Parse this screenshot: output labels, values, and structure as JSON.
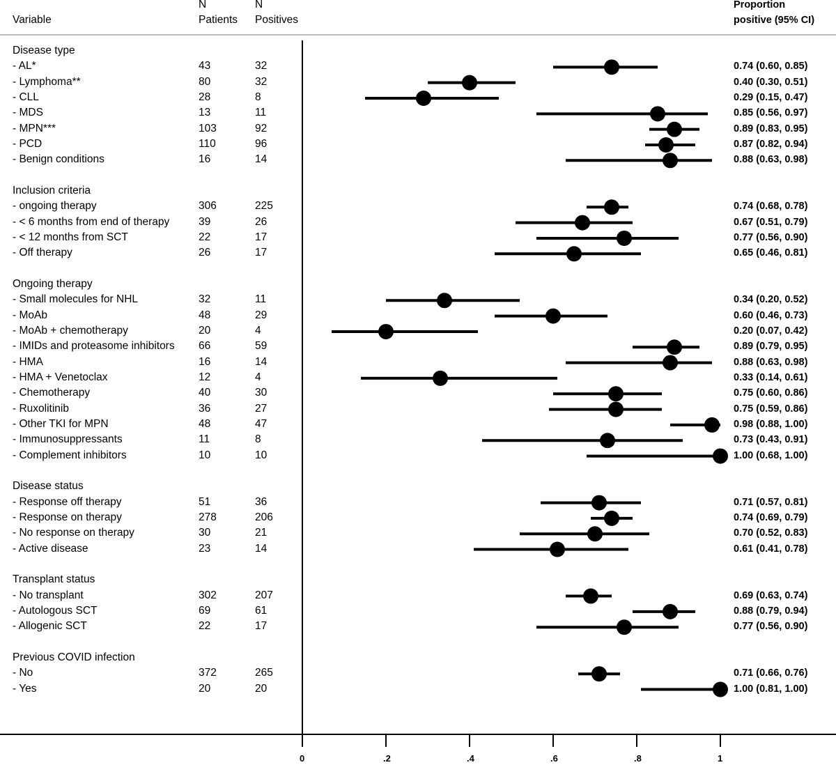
{
  "chart_data": {
    "type": "forest",
    "headers": {
      "variable": "Variable",
      "n_patients": [
        "N",
        "Patients"
      ],
      "n_positives": [
        "N",
        "Positives"
      ],
      "estimate": [
        "Proportion",
        "positive (95% CI)"
      ]
    },
    "xlim": [
      0,
      1
    ],
    "x_ticks": [
      0,
      0.2,
      0.4,
      0.6,
      0.8,
      1
    ],
    "x_tick_labels": [
      "0",
      ".2",
      ".4",
      ".6",
      ".8",
      "1"
    ],
    "reference_line": 0,
    "marker_color": "#000000",
    "groups": [
      {
        "title": "Disease type",
        "rows": [
          {
            "label": "- AL*",
            "n": "43",
            "pos": "32",
            "est": 0.74,
            "lo": 0.6,
            "hi": 0.85,
            "text": "0.74 (0.60, 0.85)"
          },
          {
            "label": "- Lymphoma**",
            "n": "80",
            "pos": "32",
            "est": 0.4,
            "lo": 0.3,
            "hi": 0.51,
            "text": "0.40 (0.30, 0.51)"
          },
          {
            "label": "- CLL",
            "n": "28",
            "pos": "8",
            "est": 0.29,
            "lo": 0.15,
            "hi": 0.47,
            "text": "0.29 (0.15, 0.47)"
          },
          {
            "label": "- MDS",
            "n": "13",
            "pos": "11",
            "est": 0.85,
            "lo": 0.56,
            "hi": 0.97,
            "text": "0.85 (0.56, 0.97)"
          },
          {
            "label": "- MPN***",
            "n": "103",
            "pos": "92",
            "est": 0.89,
            "lo": 0.83,
            "hi": 0.95,
            "text": "0.89 (0.83, 0.95)"
          },
          {
            "label": "- PCD",
            "n": "110",
            "pos": "96",
            "est": 0.87,
            "lo": 0.82,
            "hi": 0.94,
            "text": "0.87 (0.82, 0.94)"
          },
          {
            "label": "- Benign conditions",
            "n": "16",
            "pos": "14",
            "est": 0.88,
            "lo": 0.63,
            "hi": 0.98,
            "text": "0.88 (0.63, 0.98)"
          }
        ]
      },
      {
        "title": "Inclusion criteria",
        "rows": [
          {
            "label": "- ongoing therapy",
            "n": "306",
            "pos": "225",
            "est": 0.74,
            "lo": 0.68,
            "hi": 0.78,
            "text": "0.74 (0.68, 0.78)"
          },
          {
            "label": "- < 6 months from end of therapy",
            "n": "39",
            "pos": "26",
            "est": 0.67,
            "lo": 0.51,
            "hi": 0.79,
            "text": "0.67 (0.51, 0.79)"
          },
          {
            "label": "- < 12 months from SCT",
            "n": "22",
            "pos": "17",
            "est": 0.77,
            "lo": 0.56,
            "hi": 0.9,
            "text": "0.77 (0.56, 0.90)"
          },
          {
            "label": "- Off therapy",
            "n": "26",
            "pos": "17",
            "est": 0.65,
            "lo": 0.46,
            "hi": 0.81,
            "text": "0.65 (0.46, 0.81)"
          }
        ]
      },
      {
        "title": "Ongoing therapy",
        "rows": [
          {
            "label": "- Small molecules for NHL",
            "n": "32",
            "pos": "11",
            "est": 0.34,
            "lo": 0.2,
            "hi": 0.52,
            "text": "0.34 (0.20, 0.52)"
          },
          {
            "label": "- MoAb",
            "n": "48",
            "pos": "29",
            "est": 0.6,
            "lo": 0.46,
            "hi": 0.73,
            "text": "0.60 (0.46, 0.73)"
          },
          {
            "label": "- MoAb + chemotherapy",
            "n": "20",
            "pos": "4",
            "est": 0.2,
            "lo": 0.07,
            "hi": 0.42,
            "text": "0.20 (0.07, 0.42)"
          },
          {
            "label": "- IMIDs and proteasome inhibitors",
            "n": "66",
            "pos": "59",
            "est": 0.89,
            "lo": 0.79,
            "hi": 0.95,
            "text": "0.89 (0.79, 0.95)"
          },
          {
            "label": "- HMA",
            "n": "16",
            "pos": "14",
            "est": 0.88,
            "lo": 0.63,
            "hi": 0.98,
            "text": "0.88 (0.63, 0.98)"
          },
          {
            "label": "- HMA + Venetoclax",
            "n": "12",
            "pos": "4",
            "est": 0.33,
            "lo": 0.14,
            "hi": 0.61,
            "text": "0.33 (0.14, 0.61)"
          },
          {
            "label": "- Chemotherapy",
            "n": "40",
            "pos": "30",
            "est": 0.75,
            "lo": 0.6,
            "hi": 0.86,
            "text": "0.75 (0.60, 0.86)"
          },
          {
            "label": "- Ruxolitinib",
            "n": "36",
            "pos": "27",
            "est": 0.75,
            "lo": 0.59,
            "hi": 0.86,
            "text": "0.75 (0.59, 0.86)"
          },
          {
            "label": "- Other TKI for MPN",
            "n": "48",
            "pos": "47",
            "est": 0.98,
            "lo": 0.88,
            "hi": 1.0,
            "text": "0.98 (0.88, 1.00)"
          },
          {
            "label": "- Immunosuppressants",
            "n": "11",
            "pos": "8",
            "est": 0.73,
            "lo": 0.43,
            "hi": 0.91,
            "text": "0.73 (0.43, 0.91)"
          },
          {
            "label": "- Complement inhibitors",
            "n": "10",
            "pos": "10",
            "est": 1.0,
            "lo": 0.68,
            "hi": 1.0,
            "text": "1.00 (0.68, 1.00)"
          }
        ]
      },
      {
        "title": "Disease status",
        "rows": [
          {
            "label": "- Response off therapy",
            "n": "51",
            "pos": "36",
            "est": 0.71,
            "lo": 0.57,
            "hi": 0.81,
            "text": "0.71 (0.57, 0.81)"
          },
          {
            "label": "- Response on therapy",
            "n": "278",
            "pos": "206",
            "est": 0.74,
            "lo": 0.69,
            "hi": 0.79,
            "text": "0.74 (0.69, 0.79)"
          },
          {
            "label": "- No response on therapy",
            "n": "30",
            "pos": "21",
            "est": 0.7,
            "lo": 0.52,
            "hi": 0.83,
            "text": "0.70 (0.52, 0.83)"
          },
          {
            "label": "- Active disease",
            "n": "23",
            "pos": "14",
            "est": 0.61,
            "lo": 0.41,
            "hi": 0.78,
            "text": "0.61 (0.41, 0.78)"
          }
        ]
      },
      {
        "title": "Transplant status",
        "rows": [
          {
            "label": "- No transplant",
            "n": "302",
            "pos": "207",
            "est": 0.69,
            "lo": 0.63,
            "hi": 0.74,
            "text": "0.69 (0.63, 0.74)"
          },
          {
            "label": "- Autologous SCT",
            "n": "69",
            "pos": "61",
            "est": 0.88,
            "lo": 0.79,
            "hi": 0.94,
            "text": "0.88 (0.79, 0.94)"
          },
          {
            "label": "- Allogenic SCT",
            "n": "22",
            "pos": "17",
            "est": 0.77,
            "lo": 0.56,
            "hi": 0.9,
            "text": "0.77 (0.56, 0.90)"
          }
        ]
      },
      {
        "title": "Previous COVID infection",
        "rows": [
          {
            "label": "- No",
            "n": "372",
            "pos": "265",
            "est": 0.71,
            "lo": 0.66,
            "hi": 0.76,
            "text": "0.71 (0.66, 0.76)"
          },
          {
            "label": "- Yes",
            "n": "20",
            "pos": "20",
            "est": 1.0,
            "lo": 0.81,
            "hi": 1.0,
            "text": "1.00 (0.81, 1.00)"
          }
        ]
      }
    ]
  }
}
